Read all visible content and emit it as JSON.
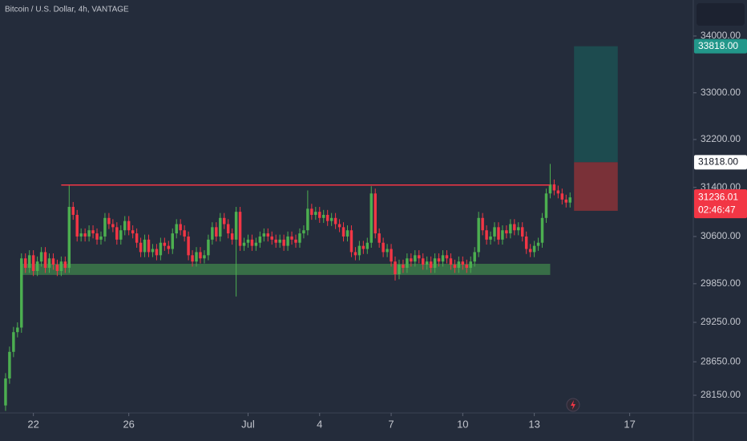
{
  "chart_data": {
    "type": "candlestick",
    "title": "Bitcoin / U.S. Dollar, 4h, VANTAGE",
    "log_scale": true,
    "up_color": "#4caf50",
    "down_color": "#f23645",
    "ylim": [
      27890,
      34650
    ],
    "yticks": [
      {
        "value": 28150,
        "label": "28150.00"
      },
      {
        "value": 28650,
        "label": "28650.00"
      },
      {
        "value": 29250,
        "label": "29250.00"
      },
      {
        "value": 29850,
        "label": "29850.00"
      },
      {
        "value": 30600,
        "label": "30600.00"
      },
      {
        "value": 31400,
        "label": "31400.00"
      },
      {
        "value": 32200,
        "label": "32200.00"
      },
      {
        "value": 33000,
        "label": "33000.00"
      },
      {
        "value": 34000,
        "label": "34000.00"
      }
    ],
    "xlim": [
      -1.4,
      173
    ],
    "xticks": [
      {
        "value": 7,
        "label": "22"
      },
      {
        "value": 31,
        "label": "26"
      },
      {
        "value": 61,
        "label": "Jul"
      },
      {
        "value": 79,
        "label": "4"
      },
      {
        "value": 97,
        "label": "7"
      },
      {
        "value": 115,
        "label": "10"
      },
      {
        "value": 133,
        "label": "13"
      },
      {
        "value": 157,
        "label": "17"
      }
    ],
    "open": [
      28000,
      28400,
      28800,
      29100,
      29170,
      30250,
      30100,
      30300,
      30050,
      30200,
      30350,
      30100,
      30250,
      30150,
      30050,
      30200,
      30100,
      31080,
      30950,
      30600,
      30650,
      30600,
      30700,
      30650,
      30550,
      30600,
      30900,
      30800,
      30750,
      30550,
      30700,
      30850,
      30700,
      30650,
      30500,
      30350,
      30550,
      30350,
      30400,
      30300,
      30500,
      30450,
      30400,
      30650,
      30800,
      30700,
      30600,
      30300,
      30200,
      30350,
      30250,
      30300,
      30550,
      30750,
      30600,
      30900,
      30800,
      30650,
      30550,
      31000,
      30450,
      30500,
      30550,
      30450,
      30500,
      30600,
      30650,
      30600,
      30550,
      30500,
      30550,
      30450,
      30600,
      30550,
      30500,
      30650,
      30700,
      31050,
      30950,
      31000,
      30900,
      30950,
      30850,
      30900,
      30800,
      30750,
      30600,
      30700,
      30350,
      30300,
      30450,
      30400,
      30500,
      31300,
      30650,
      30500,
      30350,
      30400,
      30200,
      30000,
      30150,
      30100,
      30250,
      30200,
      30300,
      30250,
      30150,
      30200,
      30100,
      30250,
      30200,
      30300,
      30250,
      30150,
      30100,
      30200,
      30150,
      30100,
      30200,
      30350,
      30900,
      30700,
      30550,
      30600,
      30750,
      30550,
      30700,
      30650,
      30800,
      30700,
      30750,
      30600,
      30400,
      30350,
      30450,
      30500,
      30900,
      31300,
      31450,
      31350,
      31300,
      31200,
      31150
    ],
    "high": [
      28480,
      28880,
      29180,
      29250,
      30330,
      30330,
      30380,
      30380,
      30280,
      30430,
      30430,
      30330,
      30330,
      30230,
      30280,
      30280,
      31440,
      31160,
      31030,
      30730,
      30730,
      30780,
      30780,
      30730,
      30680,
      30980,
      30980,
      30880,
      30830,
      30780,
      30930,
      30930,
      30780,
      30730,
      30580,
      30630,
      30630,
      30480,
      30480,
      30580,
      30580,
      30530,
      30730,
      30880,
      30880,
      30780,
      30680,
      30380,
      30430,
      30430,
      30380,
      30630,
      30830,
      30830,
      30980,
      30980,
      30880,
      30730,
      31080,
      31080,
      30580,
      30630,
      30630,
      30580,
      30680,
      30730,
      30730,
      30680,
      30630,
      30630,
      30630,
      30680,
      30680,
      30630,
      30730,
      30780,
      31350,
      31130,
      31080,
      31080,
      31030,
      31030,
      30980,
      30980,
      30880,
      30830,
      30780,
      30780,
      30430,
      30530,
      30530,
      30580,
      31420,
      31380,
      30730,
      30580,
      30480,
      30480,
      30280,
      30230,
      30230,
      30330,
      30330,
      30380,
      30380,
      30330,
      30280,
      30280,
      30330,
      30330,
      30380,
      30380,
      30330,
      30230,
      30280,
      30280,
      30230,
      30280,
      30430,
      31000,
      30980,
      30780,
      30680,
      30830,
      30830,
      30780,
      30780,
      30880,
      30880,
      30830,
      30830,
      30680,
      30480,
      30530,
      30580,
      30980,
      31380,
      31790,
      31530,
      31430,
      31380,
      31280,
      31316
    ],
    "low": [
      27920,
      28320,
      28720,
      29020,
      29090,
      30020,
      30020,
      29970,
      29970,
      30120,
      30020,
      30020,
      30070,
      29970,
      29970,
      30020,
      30020,
      30870,
      30520,
      30520,
      30520,
      30520,
      30570,
      30470,
      30470,
      30520,
      30720,
      30670,
      30470,
      30470,
      30620,
      30620,
      30570,
      30420,
      30270,
      30270,
      30270,
      30270,
      30220,
      30220,
      30370,
      30320,
      30320,
      30570,
      30620,
      30520,
      30220,
      30120,
      30120,
      30170,
      30170,
      30220,
      30470,
      30520,
      30520,
      30720,
      30570,
      30470,
      29650,
      30370,
      30370,
      30420,
      30370,
      30370,
      30420,
      30520,
      30520,
      30470,
      30420,
      30420,
      30370,
      30370,
      30470,
      30420,
      30420,
      30570,
      30620,
      30870,
      30870,
      30820,
      30820,
      30770,
      30770,
      30720,
      30670,
      30520,
      30520,
      30270,
      30220,
      30220,
      30320,
      30320,
      30420,
      30570,
      30420,
      30270,
      30270,
      30120,
      29900,
      29920,
      30020,
      30020,
      30120,
      30120,
      30170,
      30070,
      30070,
      30020,
      30020,
      30120,
      30120,
      30170,
      30070,
      30020,
      30020,
      30070,
      30020,
      30020,
      30120,
      30270,
      30620,
      30470,
      30470,
      30520,
      30470,
      30470,
      30570,
      30570,
      30620,
      30620,
      30520,
      30320,
      30270,
      30270,
      30370,
      30420,
      30820,
      31220,
      31270,
      31220,
      31120,
      31070,
      31070
    ],
    "close": [
      28400,
      28800,
      29100,
      29170,
      30250,
      30100,
      30300,
      30050,
      30200,
      30350,
      30100,
      30250,
      30150,
      30050,
      30200,
      30100,
      31080,
      30950,
      30600,
      30650,
      30600,
      30700,
      30650,
      30550,
      30600,
      30900,
      30800,
      30750,
      30550,
      30700,
      30850,
      30700,
      30650,
      30500,
      30350,
      30550,
      30350,
      30400,
      30300,
      30500,
      30450,
      30400,
      30650,
      30800,
      30700,
      30600,
      30300,
      30200,
      30350,
      30250,
      30300,
      30550,
      30750,
      30600,
      30900,
      30800,
      30650,
      30550,
      31000,
      30450,
      30500,
      30550,
      30450,
      30500,
      30600,
      30650,
      30600,
      30550,
      30500,
      30550,
      30450,
      30600,
      30550,
      30500,
      30650,
      30700,
      31050,
      30950,
      31000,
      30900,
      30950,
      30850,
      30900,
      30800,
      30750,
      30600,
      30700,
      30350,
      30300,
      30450,
      30400,
      30500,
      31300,
      30650,
      30500,
      30350,
      30400,
      30200,
      30000,
      30150,
      30100,
      30250,
      30200,
      30300,
      30250,
      30150,
      30200,
      30100,
      30250,
      30200,
      30300,
      30250,
      30150,
      30100,
      30200,
      30150,
      30100,
      30200,
      30350,
      30900,
      30700,
      30550,
      30600,
      30750,
      30550,
      30700,
      30650,
      30800,
      30700,
      30750,
      30600,
      30400,
      30350,
      30450,
      30500,
      30900,
      31300,
      31450,
      31350,
      31300,
      31200,
      31150,
      31236.01
    ],
    "resistance": {
      "value": 31440,
      "from": 14,
      "to": 137,
      "color": "#f23645"
    },
    "support_zone": {
      "low": 29988,
      "high": 30164,
      "from": 4,
      "to": 137,
      "color": "#3c7a4a"
    },
    "position": {
      "target": {
        "value": 33818,
        "label": "33818.00"
      },
      "entry": {
        "value": 31818,
        "label": "31818.00"
      },
      "stop": 31016,
      "from": 143,
      "to": 154,
      "profit_color": "#1d4b4f",
      "loss_color": "#7a3138"
    },
    "last_price": {
      "value": 31236.01,
      "label": "31236.01"
    },
    "countdown": "02:46:47"
  }
}
